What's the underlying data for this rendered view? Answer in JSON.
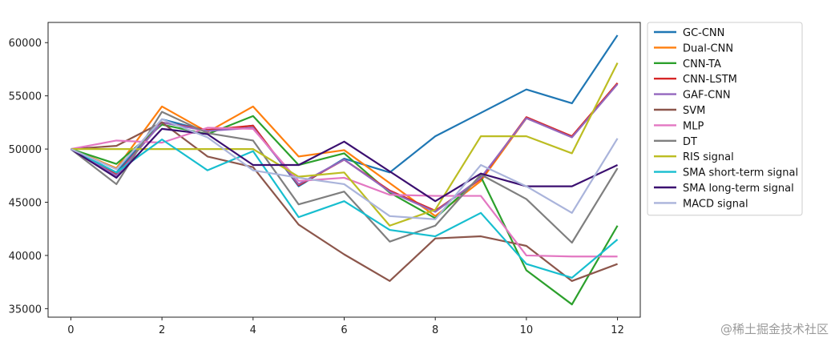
{
  "chart_data": {
    "type": "line",
    "x": [
      0,
      1,
      2,
      3,
      4,
      5,
      6,
      7,
      8,
      9,
      10,
      11,
      12
    ],
    "xticks": [
      0,
      2,
      4,
      6,
      8,
      10,
      12
    ],
    "yticks": [
      35000,
      40000,
      45000,
      50000,
      55000,
      60000
    ],
    "xlim": [
      -0.5,
      12.5
    ],
    "ylim": [
      34200,
      61900
    ],
    "legend_position": "outside-right",
    "grid": false,
    "series": [
      {
        "name": "GC-CNN",
        "color": "#1f77b4",
        "values": [
          50000,
          47800,
          52800,
          51700,
          52200,
          46500,
          49100,
          47800,
          51200,
          53400,
          55600,
          54300,
          60700
        ]
      },
      {
        "name": "Dual-CNN",
        "color": "#ff7f0e",
        "values": [
          50000,
          48200,
          54000,
          51600,
          54000,
          49300,
          49900,
          46800,
          43700,
          47000,
          52900,
          51200,
          56200
        ]
      },
      {
        "name": "CNN-TA",
        "color": "#2ca02c",
        "values": [
          50000,
          48600,
          52300,
          51400,
          53100,
          48500,
          49600,
          45900,
          43500,
          47400,
          38600,
          35400,
          42800
        ]
      },
      {
        "name": "CNN-LSTM",
        "color": "#d62728",
        "values": [
          50000,
          47600,
          52500,
          51800,
          52200,
          46600,
          49000,
          46100,
          44200,
          47200,
          53000,
          51200,
          56200
        ]
      },
      {
        "name": "GAF-CNN",
        "color": "#9467bd",
        "values": [
          50000,
          47500,
          52500,
          51700,
          52000,
          46700,
          49000,
          46000,
          44100,
          47300,
          52900,
          51100,
          56100
        ]
      },
      {
        "name": "SVM",
        "color": "#8c564b",
        "values": [
          50000,
          50300,
          52500,
          49300,
          48300,
          42900,
          40100,
          37600,
          41600,
          41800,
          40900,
          37600,
          39200
        ]
      },
      {
        "name": "MLP",
        "color": "#e377c2",
        "values": [
          50000,
          50800,
          50600,
          52000,
          51900,
          47000,
          47300,
          45700,
          45600,
          45600,
          40000,
          39900,
          39900
        ]
      },
      {
        "name": "DT",
        "color": "#7f7f7f",
        "values": [
          50000,
          46700,
          53500,
          51500,
          50800,
          44800,
          46000,
          41300,
          42800,
          47600,
          45300,
          41200,
          48200
        ]
      },
      {
        "name": "RIS signal",
        "color": "#bcbd22",
        "values": [
          50000,
          50000,
          50000,
          50000,
          50000,
          47400,
          47800,
          42800,
          44300,
          51200,
          51200,
          49600,
          58100
        ]
      },
      {
        "name": "SMA short-term signal",
        "color": "#17becf",
        "values": [
          50000,
          47800,
          50900,
          48000,
          49800,
          43600,
          45100,
          42400,
          41800,
          44000,
          39200,
          37900,
          41500
        ]
      },
      {
        "name": "SMA long-term signal",
        "color": "#3b0f70",
        "values": [
          50000,
          47300,
          51900,
          51400,
          48500,
          48500,
          50700,
          47900,
          45100,
          47700,
          46500,
          46500,
          48500
        ]
      },
      {
        "name": "MACD signal",
        "color": "#aab4db",
        "values": [
          50000,
          48100,
          52800,
          51100,
          48000,
          47300,
          46700,
          43700,
          43400,
          48500,
          46500,
          44000,
          51000
        ]
      }
    ]
  },
  "watermark": "@稀土掘金技术社区"
}
